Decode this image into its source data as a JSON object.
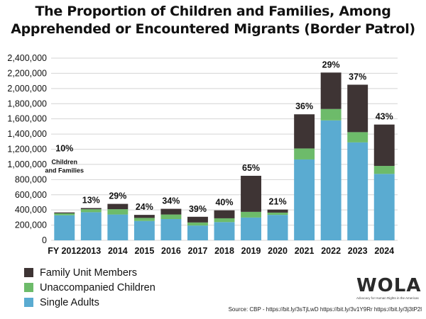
{
  "chart_data": {
    "type": "bar",
    "stacked": true,
    "title_lines": [
      "The Proportion of Children and Families, Among",
      "Apprehended or Encountered Migrants (Border Patrol)"
    ],
    "categories": [
      "FY 2012",
      "2013",
      "2014",
      "2015",
      "2016",
      "2017",
      "2018",
      "2019",
      "2020",
      "2021",
      "2022",
      "2023",
      "2024"
    ],
    "series": [
      {
        "name": "Single Adults",
        "color": "#5aabd1",
        "values": [
          330000,
          370000,
          340000,
          255000,
          280000,
          195000,
          240000,
          300000,
          335000,
          1065000,
          1580000,
          1290000,
          875000
        ]
      },
      {
        "name": "Unaccompanied Children",
        "color": "#6dbb6a",
        "values": [
          25000,
          40000,
          70000,
          40000,
          60000,
          40000,
          50000,
          75000,
          30000,
          145000,
          150000,
          135000,
          105000
        ]
      },
      {
        "name": "Family Unit Members",
        "color": "#3e3434",
        "values": [
          12000,
          15000,
          70000,
          40000,
          75000,
          75000,
          105000,
          475000,
          40000,
          450000,
          480000,
          625000,
          545000
        ]
      }
    ],
    "bar_labels": [
      "10%",
      "13%",
      "29%",
      "24%",
      "34%",
      "39%",
      "40%",
      "65%",
      "21%",
      "36%",
      "29%",
      "37%",
      "43%"
    ],
    "annotation": "Children and Families",
    "ylim": [
      0,
      2400000
    ],
    "yticks": [
      0,
      200000,
      400000,
      600000,
      800000,
      1000000,
      1200000,
      1400000,
      1600000,
      1800000,
      2000000,
      2200000,
      2400000
    ],
    "ytick_labels": [
      "0",
      "200,000",
      "400,000",
      "600,000",
      "800,000",
      "1,000,000",
      "1,200,000",
      "1,400,000",
      "1,600,000",
      "1,800,000",
      "2,000,000",
      "2,200,000",
      "2,400,000"
    ],
    "grid": true,
    "legend_placement": "bottom-left",
    "legend_order": [
      "Family Unit Members",
      "Unaccompanied Children",
      "Single Adults"
    ]
  },
  "logo": {
    "text": "WOLA",
    "tagline": "Advocacy for Human Rights in the Americas"
  },
  "source": "Source: CBP - https://bit.ly/3sTjLwD https://bit.ly/3v1Y9Rr https://bit.ly/3j3tP2l"
}
